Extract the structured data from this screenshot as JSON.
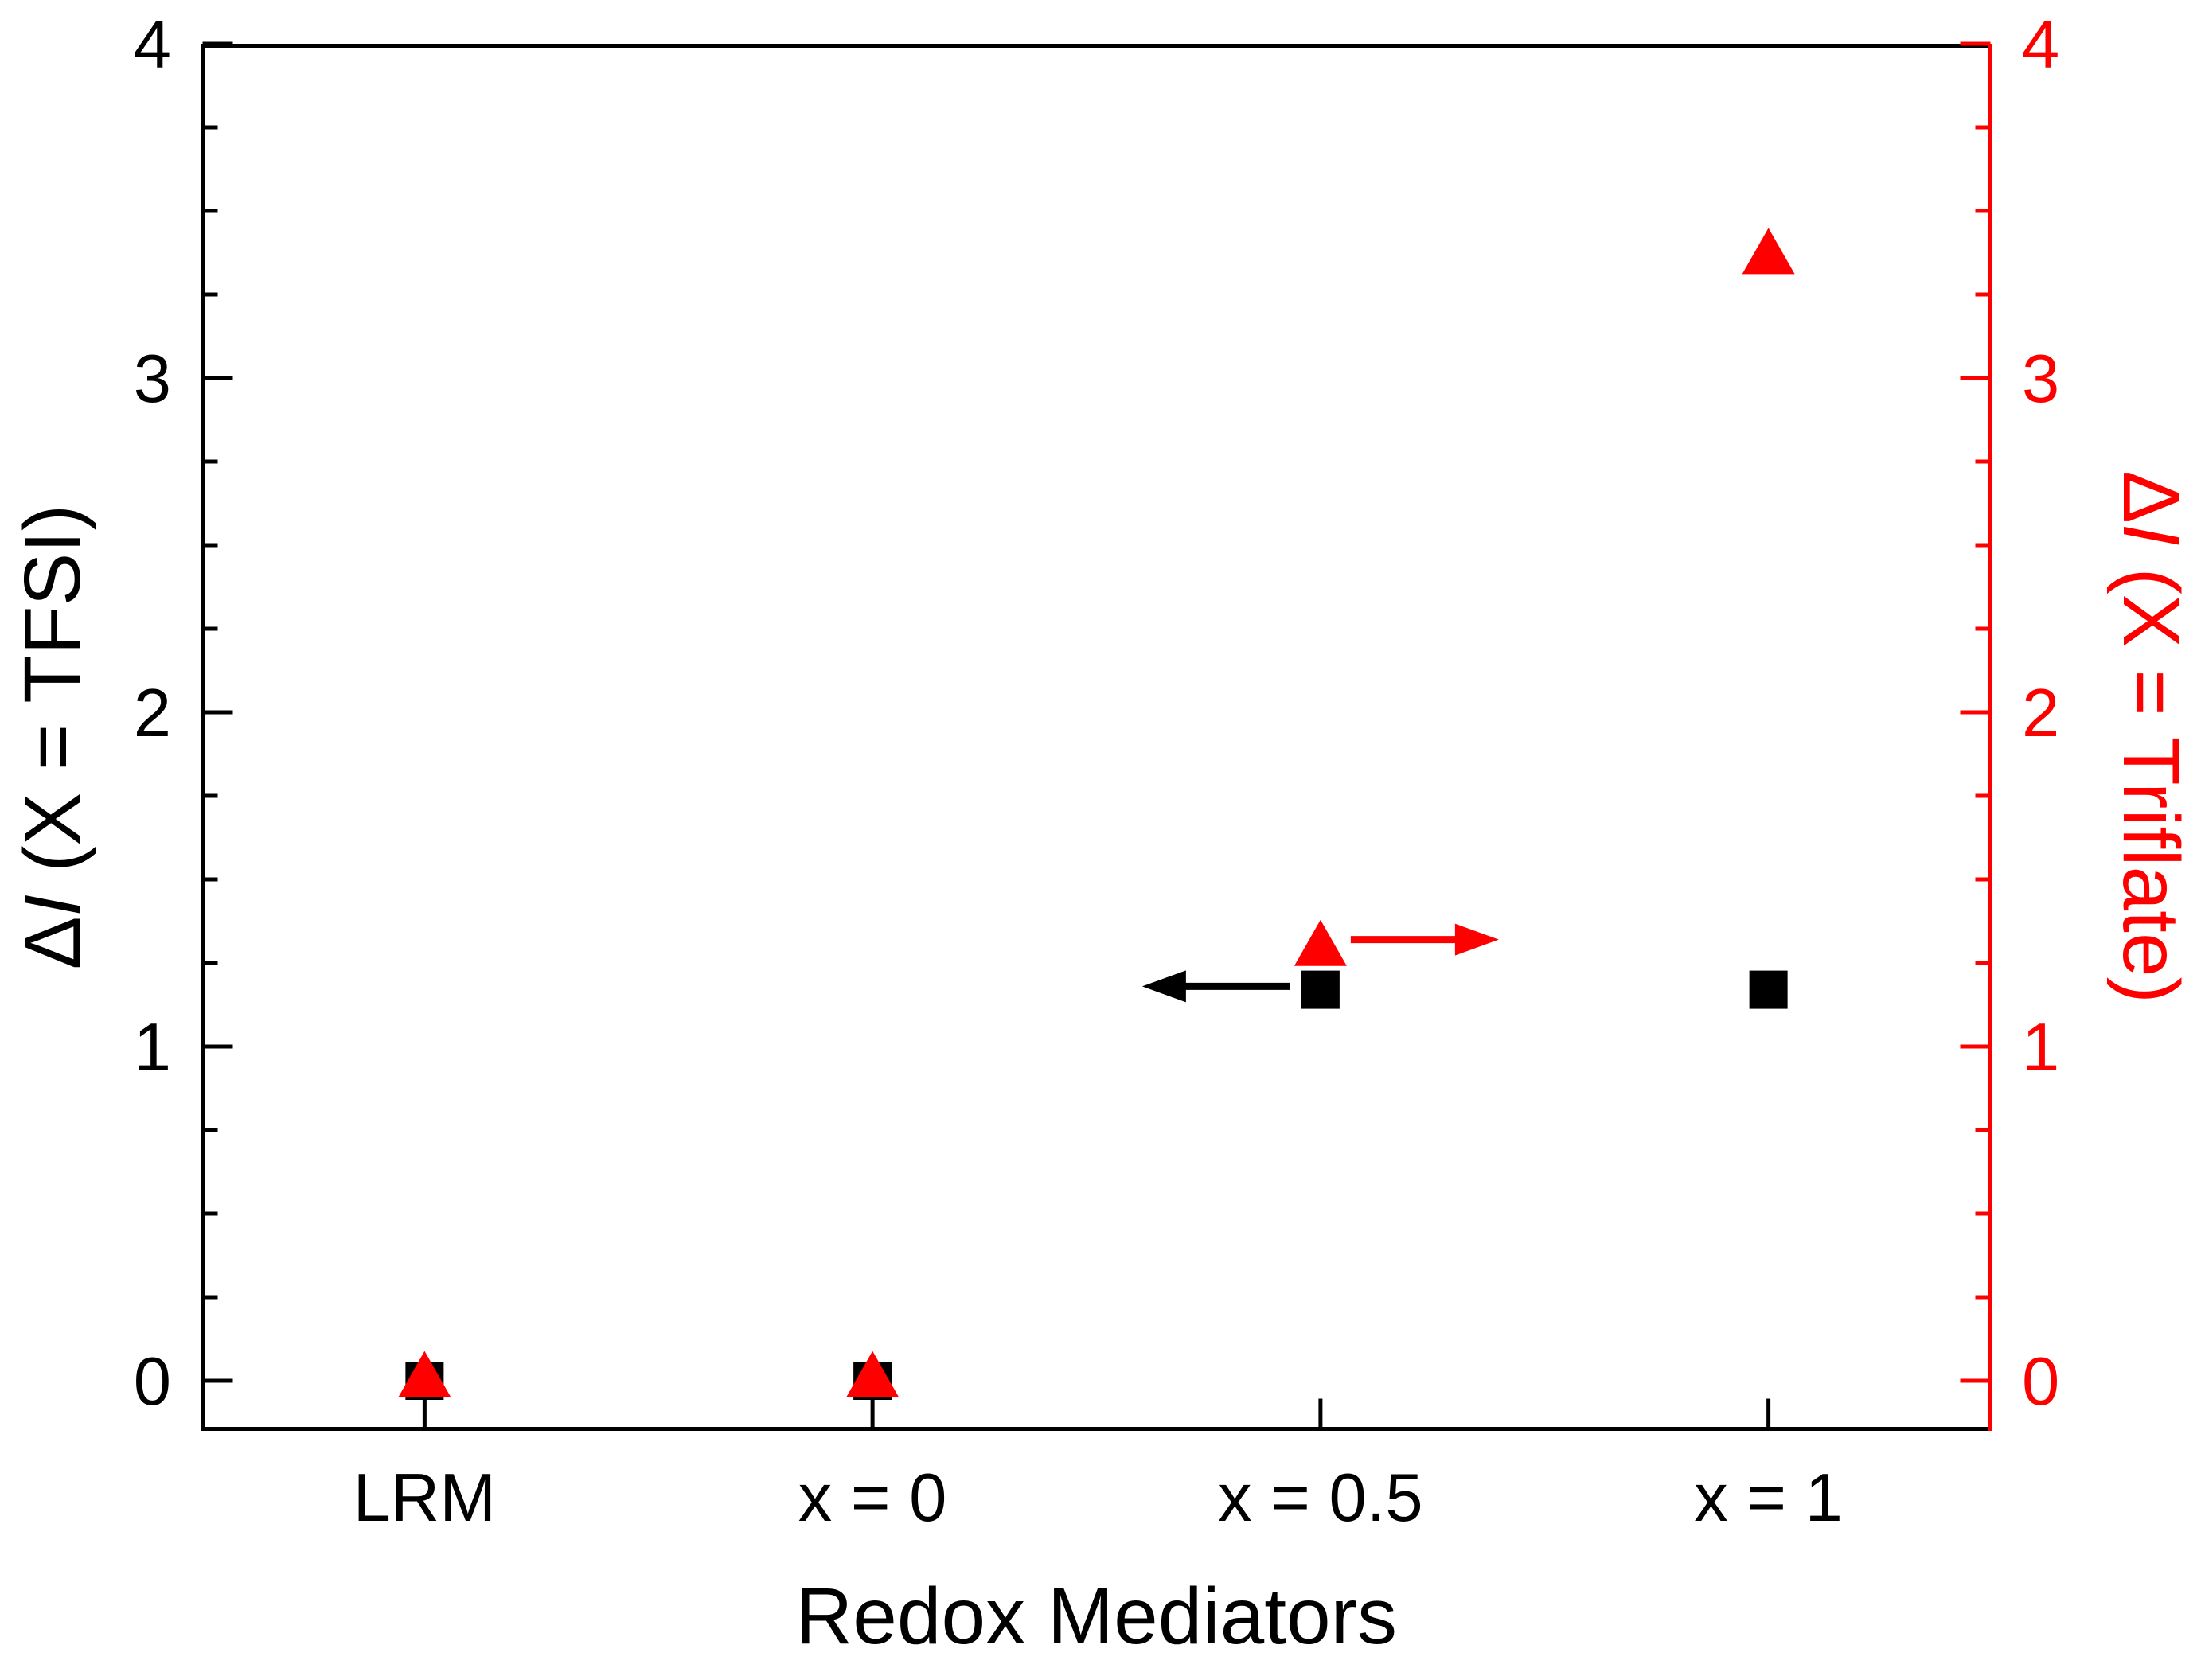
{
  "chart_data": {
    "type": "scatter",
    "title": "",
    "xlabel": "Redox Mediators",
    "categories": [
      "LRM",
      "x = 0",
      "x = 0.5",
      "x = 1"
    ],
    "category_slugs": [
      "lrm",
      "x-0",
      "x-0-5",
      "x-1"
    ],
    "left_axis": {
      "label": "ΔI (X = TFSI)",
      "color": "#000000",
      "range": [
        -0.15,
        4.0
      ],
      "major_ticks": [
        0,
        1,
        2,
        3,
        4
      ],
      "tick_labels": [
        "0",
        "1",
        "2",
        "3",
        "4"
      ],
      "minor_tick_step": 0.25
    },
    "right_axis": {
      "label": "ΔI (X = Triflate)",
      "color": "#ff0000",
      "range": [
        -0.15,
        4.0
      ],
      "major_ticks": [
        0,
        1,
        2,
        3,
        4
      ],
      "tick_labels": [
        "0",
        "1",
        "2",
        "3",
        "4"
      ],
      "minor_tick_step": 0.25
    },
    "series": [
      {
        "name": "ΔI (X = TFSI)",
        "axis": "left",
        "marker": "square",
        "color": "#000000",
        "values": [
          0.0,
          0.0,
          1.17,
          1.17
        ]
      },
      {
        "name": "ΔI (X = Triflate)",
        "axis": "right",
        "marker": "triangle-up",
        "color": "#ff0000",
        "values": [
          0.02,
          0.02,
          1.31,
          3.38
        ]
      }
    ],
    "annotations": [
      {
        "type": "arrow",
        "points_to": "left-axis",
        "direction": "left",
        "color": "#000000",
        "category_index": 2,
        "value": 1.18
      },
      {
        "type": "arrow",
        "points_to": "right-axis",
        "direction": "right",
        "color": "#ff0000",
        "category_index": 2,
        "value": 1.32
      }
    ],
    "grid": false,
    "legend": "none"
  }
}
